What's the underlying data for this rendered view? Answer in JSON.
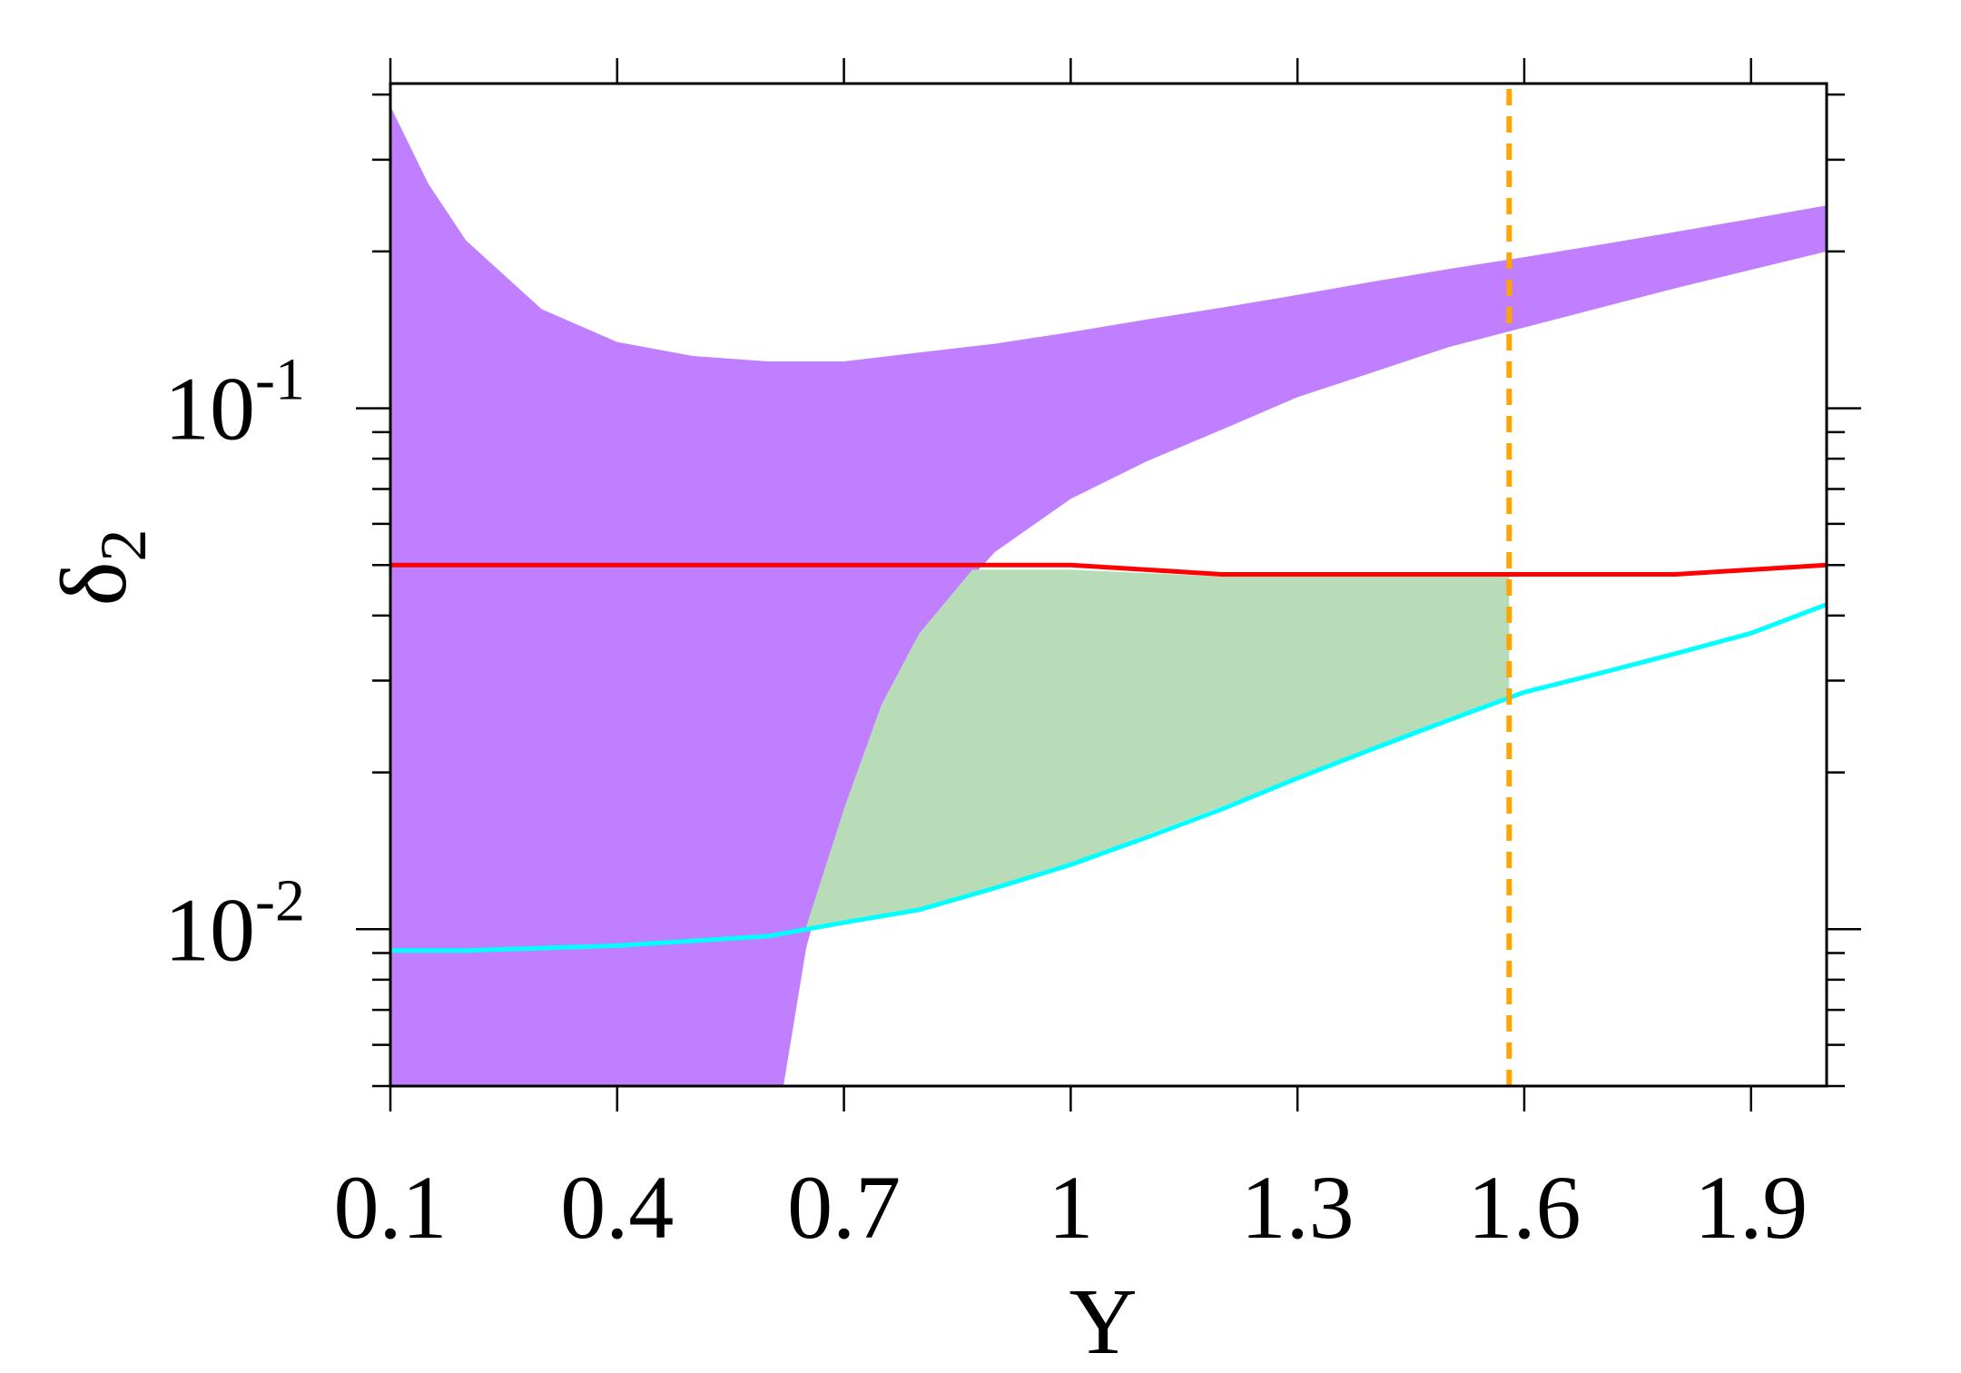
{
  "chart_data": {
    "type": "line",
    "title": "",
    "xlabel": "Y",
    "ylabel": "δ2",
    "ylabel_main": "δ",
    "ylabel_sub": "2",
    "xlim": [
      0.1,
      2.0
    ],
    "ylim": [
      0.005,
      0.42
    ],
    "yscale": "log",
    "grid": false,
    "xticks": [
      0.1,
      0.4,
      0.7,
      1.0,
      1.3,
      1.6,
      1.9
    ],
    "xtick_labels": [
      "0.1",
      "0.4",
      "0.7",
      "1",
      "1.3",
      "1.6",
      "1.9"
    ],
    "yticks": [
      {
        "value": 0.1,
        "base": "10",
        "exp": "-1"
      },
      {
        "value": 0.01,
        "base": "10",
        "exp": "-2"
      }
    ],
    "colors": {
      "purple_region": "#bf7fff",
      "green_region": "#b8dcb8",
      "red_line": "#ff0000",
      "cyan_line": "#00ffff",
      "orange_line": "#ffa500"
    },
    "purple_region": {
      "upper": {
        "x": [
          0.1,
          0.15,
          0.2,
          0.3,
          0.4,
          0.5,
          0.6,
          0.7,
          0.8,
          0.9,
          1.0,
          1.1,
          1.2,
          1.3,
          1.4,
          1.5,
          1.6,
          1.7,
          1.8,
          1.9,
          2.0
        ],
        "y": [
          0.38,
          0.27,
          0.21,
          0.155,
          0.134,
          0.126,
          0.123,
          0.123,
          0.128,
          0.133,
          0.14,
          0.148,
          0.156,
          0.165,
          0.175,
          0.185,
          0.195,
          0.206,
          0.218,
          0.231,
          0.245
        ]
      },
      "lower": {
        "x": [
          0.1,
          0.62,
          0.65,
          0.7,
          0.75,
          0.8,
          0.9,
          1.0,
          1.1,
          1.2,
          1.3,
          1.5,
          1.8,
          2.0
        ],
        "y": [
          0.005,
          0.005,
          0.0092,
          0.017,
          0.027,
          0.037,
          0.053,
          0.067,
          0.079,
          0.091,
          0.105,
          0.131,
          0.17,
          0.2
        ]
      }
    },
    "green_region": {
      "x": [
        0.65,
        0.7,
        0.75,
        0.8,
        0.87,
        0.9,
        1.0,
        1.2,
        1.58,
        1.58,
        1.5,
        1.2,
        1.0,
        0.8,
        0.7,
        0.65
      ],
      "y": [
        0.0101,
        0.017,
        0.027,
        0.037,
        0.049,
        0.049,
        0.049,
        0.0475,
        0.0475,
        0.028,
        0.0255,
        0.0172,
        0.0134,
        0.0109,
        0.0102,
        0.0101
      ]
    },
    "series": [
      {
        "color": "#ff0000",
        "x": [
          0.1,
          0.4,
          0.7,
          1.0,
          1.2,
          1.5,
          1.8,
          2.0
        ],
        "y": [
          0.05,
          0.05,
          0.05,
          0.05,
          0.048,
          0.048,
          0.048,
          0.05
        ]
      },
      {
        "color": "#00ffff",
        "x": [
          0.1,
          0.2,
          0.3,
          0.4,
          0.5,
          0.6,
          0.7,
          0.8,
          0.9,
          1.0,
          1.1,
          1.2,
          1.3,
          1.4,
          1.5,
          1.6,
          1.7,
          1.8,
          1.9,
          2.0
        ],
        "y": [
          0.0091,
          0.0091,
          0.0092,
          0.0093,
          0.0095,
          0.0097,
          0.0103,
          0.0109,
          0.012,
          0.0133,
          0.015,
          0.017,
          0.0195,
          0.0222,
          0.0252,
          0.0285,
          0.031,
          0.0338,
          0.037,
          0.042
        ]
      },
      {
        "color": "#ffa500",
        "style": "dashed",
        "x": [
          1.58,
          1.58
        ],
        "y": [
          0.005,
          0.42
        ]
      }
    ]
  }
}
